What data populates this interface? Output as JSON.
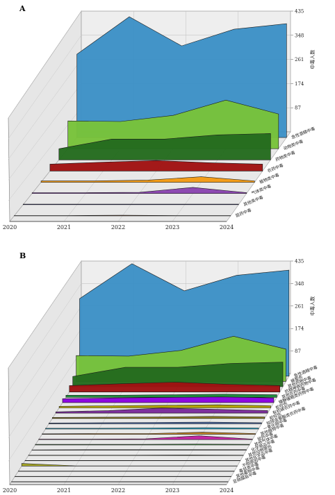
{
  "colors": {
    "blue": "#3d91c6",
    "lightgreen": "#78c23a",
    "darkgreen": "#246b1e",
    "red": "#a01212",
    "orange": "#f39a14",
    "purple": "#8a44b0",
    "navy": "#3a3a8e",
    "brown": "#8b4513"
  },
  "chart_data": [
    {
      "panel": "A",
      "type": "area",
      "style": "3d-ribbon",
      "zlabel": "中毒人数",
      "x": [
        "2020",
        "2021",
        "2022",
        "2023",
        "2024"
      ],
      "zticks": [
        "87",
        "174",
        "261",
        "348",
        "435"
      ],
      "zlim": [
        0,
        435
      ],
      "grid": true,
      "series": [
        {
          "name": "急性酒精中毒",
          "color": "#3d91c6",
          "values": [
            300,
            435,
            330,
            390,
            410
          ]
        },
        {
          "name": "动物类中毒",
          "color": "#78c23a",
          "values": [
            100,
            98,
            120,
            175,
            125
          ]
        },
        {
          "name": "药物类中毒",
          "color": "#246b1e",
          "values": [
            40,
            75,
            75,
            90,
            95
          ]
        },
        {
          "name": "农药中毒",
          "color": "#a01212",
          "values": [
            25,
            32,
            38,
            30,
            25
          ]
        },
        {
          "name": "植物类中毒",
          "color": "#f39a14",
          "values": [
            5,
            5,
            8,
            20,
            5
          ]
        },
        {
          "name": "气体类中毒",
          "color": "#8a44b0",
          "values": [
            3,
            3,
            4,
            22,
            3
          ]
        },
        {
          "name": "其他类中毒",
          "color": "#3a3a8e",
          "values": [
            2,
            2,
            2,
            2,
            2
          ]
        },
        {
          "name": "鼠药中毒",
          "color": "#8b4513",
          "values": [
            1,
            1,
            2,
            1,
            1
          ]
        }
      ]
    },
    {
      "panel": "B",
      "type": "area",
      "style": "3d-ribbon",
      "zlabel": "中毒人数",
      "x": [
        "2020",
        "2021",
        "2022",
        "2023",
        "2024"
      ],
      "zticks": [
        "87",
        "174",
        "261",
        "348",
        "435"
      ],
      "zlim": [
        0,
        435
      ],
      "grid": true,
      "series": [
        {
          "name": "急性酒精中毒",
          "color": "#3d91c6",
          "values": [
            300,
            435,
            330,
            390,
            410
          ]
        },
        {
          "name": "蜂蜇伤",
          "color": "#78c23a",
          "values": [
            100,
            98,
            120,
            175,
            125
          ]
        },
        {
          "name": "其他药物中毒",
          "color": "#246b1e",
          "values": [
            40,
            75,
            75,
            90,
            95
          ]
        },
        {
          "name": "抗精神病药物中毒",
          "color": "#a01212",
          "values": [
            25,
            32,
            38,
            30,
            25
          ]
        },
        {
          "name": "其他农药中毒",
          "color": "#1a8a3a",
          "values": [
            8,
            8,
            10,
            12,
            10
          ]
        },
        {
          "name": "镇静催眠类药物中毒",
          "color": "#8a00e0",
          "values": [
            15,
            18,
            20,
            22,
            18
          ]
        },
        {
          "name": "蛇咬伤",
          "color": "#b0a000",
          "values": [
            6,
            8,
            10,
            12,
            8
          ]
        },
        {
          "name": "有机磷农药中毒",
          "color": "#7a2a9a",
          "values": [
            5,
            10,
            20,
            15,
            10
          ]
        },
        {
          "name": "蛇咬伤",
          "color": "#8a7a20",
          "values": [
            4,
            5,
            6,
            8,
            6
          ]
        },
        {
          "name": "拟除虫菊酯类农药中毒",
          "color": "#4060a0",
          "values": [
            3,
            4,
            5,
            6,
            4
          ]
        },
        {
          "name": "一氧化碳中毒",
          "color": "#20a0c0",
          "values": [
            3,
            3,
            4,
            5,
            4
          ]
        },
        {
          "name": "其他植物中毒",
          "color": "#c08020",
          "values": [
            2,
            3,
            3,
            8,
            3
          ]
        },
        {
          "name": "鼠药中毒",
          "color": "#c020a0",
          "values": [
            2,
            2,
            3,
            15,
            2
          ]
        },
        {
          "name": "其他气体中毒",
          "color": "#40a040",
          "values": [
            2,
            2,
            2,
            3,
            2
          ]
        },
        {
          "name": "化学用品中毒",
          "color": "#606060",
          "values": [
            1,
            2,
            2,
            2,
            2
          ]
        },
        {
          "name": "其他动物致伤",
          "color": "#8a8a20",
          "values": [
            1,
            1,
            1,
            2,
            1
          ]
        },
        {
          "name": "其他化学品中毒",
          "color": "#606080",
          "values": [
            1,
            1,
            1,
            1,
            1
          ]
        },
        {
          "name": "不明原因中毒",
          "color": "#a0a020",
          "values": [
            10,
            1,
            1,
            1,
            1
          ]
        },
        {
          "name": "毒鼠类中毒",
          "color": "#505050",
          "values": [
            1,
            1,
            1,
            1,
            1
          ]
        },
        {
          "name": "其他毒物中毒",
          "color": "#707070",
          "values": [
            1,
            1,
            1,
            1,
            1
          ]
        },
        {
          "name": "亚硝酸盐中毒",
          "color": "#404040",
          "values": [
            1,
            1,
            1,
            1,
            1
          ]
        }
      ]
    }
  ]
}
